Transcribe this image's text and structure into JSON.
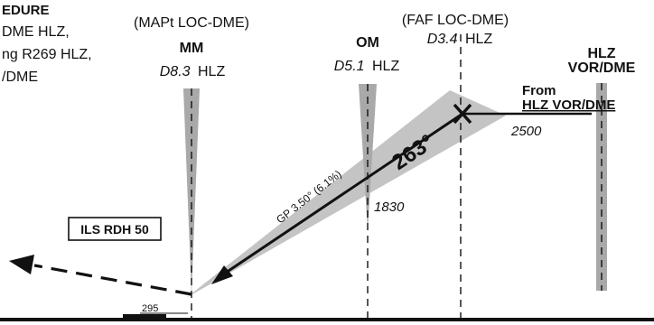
{
  "procedure": {
    "heading": "EDURE",
    "lines": [
      "DME HLZ,",
      "ng R269 HLZ,",
      "/DME"
    ]
  },
  "mm": {
    "annotation": "(MAPt LOC-DME)",
    "name": "MM",
    "distance": "D8.3",
    "station": "HLZ"
  },
  "om": {
    "name": "OM",
    "distance": "D5.1",
    "station": "HLZ",
    "altitude": "1830"
  },
  "faf": {
    "annotation": "(FAF LOC-DME)",
    "distance": "D3.4",
    "station": "HLZ"
  },
  "vor": {
    "line1": "HLZ",
    "line2": "VOR/DME"
  },
  "from_label": {
    "line1": "From",
    "line2": "HLZ VOR/DME"
  },
  "initial_altitude": "2500",
  "course": "263°",
  "glidepath": "GP 3.50° (6.1%)",
  "ils_rdh": "ILS RDH 50",
  "threshold_elevation": "295",
  "colors": {
    "ink": "#111111",
    "shade": "#c4c4c4",
    "marker_shade": "#a9a9a9"
  }
}
